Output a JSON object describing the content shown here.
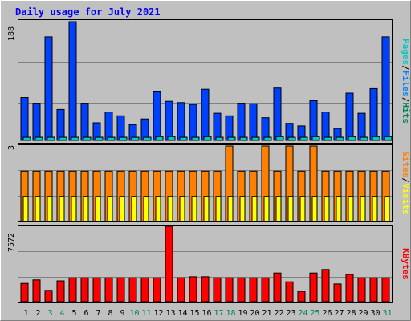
{
  "title": "Daily usage for July 2021",
  "colors": {
    "background": "#c0c0c0",
    "title": "#0000ff",
    "hits": "#0040ff",
    "files": "#0080ff",
    "pages": "#00c8c8",
    "visits": "#ff8000",
    "sites": "#ffff00",
    "kbytes": "#ff0000",
    "weekend_label": "#00805c"
  },
  "legend": {
    "hits": "Hits",
    "files": "Files",
    "pages": "Pages",
    "visits": "Visits",
    "sites": "Sites",
    "kbytes": "KBytes",
    "separator": "/"
  },
  "chart_data": [
    {
      "type": "bar",
      "panel": "hits-files-pages",
      "y_max_label": "188",
      "ylim": [
        0,
        188
      ],
      "categories": [
        "1",
        "2",
        "3",
        "4",
        "5",
        "6",
        "7",
        "8",
        "9",
        "10",
        "11",
        "12",
        "13",
        "14",
        "15",
        "16",
        "17",
        "18",
        "19",
        "20",
        "21",
        "22",
        "23",
        "24",
        "25",
        "26",
        "27",
        "28",
        "29",
        "30",
        "31"
      ],
      "weekend_days": [
        "3",
        "4",
        "10",
        "11",
        "17",
        "18",
        "24",
        "25",
        "31"
      ],
      "series": [
        {
          "name": "Hits",
          "values": [
            68,
            59,
            164,
            49,
            188,
            59,
            28,
            45,
            39,
            25,
            34,
            77,
            62,
            60,
            57,
            81,
            43,
            39,
            59,
            58,
            36,
            83,
            27,
            23,
            63,
            45,
            19,
            75,
            43,
            82,
            164
          ]
        },
        {
          "name": "Files",
          "values": [
            5,
            5,
            5,
            5,
            5,
            5,
            5,
            5,
            5,
            5,
            5,
            6,
            6,
            5,
            5,
            6,
            5,
            5,
            5,
            5,
            5,
            6,
            5,
            5,
            6,
            5,
            5,
            6,
            5,
            6,
            6
          ]
        },
        {
          "name": "Pages",
          "values": [
            5,
            5,
            5,
            5,
            5,
            5,
            5,
            5,
            5,
            5,
            5,
            6,
            6,
            5,
            5,
            6,
            5,
            5,
            5,
            5,
            5,
            6,
            5,
            5,
            6,
            5,
            5,
            6,
            5,
            6,
            6
          ]
        }
      ]
    },
    {
      "type": "bar",
      "panel": "visits-sites",
      "y_max_label": "3",
      "ylim": [
        0,
        3
      ],
      "categories": [
        "1",
        "2",
        "3",
        "4",
        "5",
        "6",
        "7",
        "8",
        "9",
        "10",
        "11",
        "12",
        "13",
        "14",
        "15",
        "16",
        "17",
        "18",
        "19",
        "20",
        "21",
        "22",
        "23",
        "24",
        "25",
        "26",
        "27",
        "28",
        "29",
        "30",
        "31"
      ],
      "series": [
        {
          "name": "Visits",
          "values": [
            2,
            2,
            2,
            2,
            2,
            2,
            2,
            2,
            2,
            2,
            2,
            2,
            2,
            2,
            2,
            2,
            2,
            3,
            2,
            2,
            3,
            2,
            3,
            2,
            3,
            2,
            2,
            2,
            2,
            2,
            2
          ]
        },
        {
          "name": "Sites",
          "values": [
            1,
            1,
            1,
            1,
            1,
            1,
            1,
            1,
            1,
            1,
            1,
            1,
            1,
            1,
            1,
            1,
            1,
            1,
            1,
            1,
            1,
            1,
            1,
            1,
            1,
            1,
            1,
            1,
            1,
            1,
            1
          ]
        }
      ]
    },
    {
      "type": "bar",
      "panel": "kbytes",
      "y_max_label": "7572",
      "ylim": [
        0,
        7572
      ],
      "categories": [
        "1",
        "2",
        "3",
        "4",
        "5",
        "6",
        "7",
        "8",
        "9",
        "10",
        "11",
        "12",
        "13",
        "14",
        "15",
        "16",
        "17",
        "18",
        "19",
        "20",
        "21",
        "22",
        "23",
        "24",
        "25",
        "26",
        "27",
        "28",
        "29",
        "30",
        "31"
      ],
      "series": [
        {
          "name": "KBytes",
          "values": [
            1840,
            2195,
            1140,
            2095,
            2395,
            2395,
            2395,
            2395,
            2395,
            2395,
            2395,
            2395,
            7572,
            2395,
            2505,
            2505,
            2395,
            2395,
            2395,
            2395,
            2395,
            2880,
            1995,
            1040,
            2880,
            3235,
            1780,
            2740,
            2395,
            2395,
            2395
          ]
        }
      ]
    }
  ]
}
